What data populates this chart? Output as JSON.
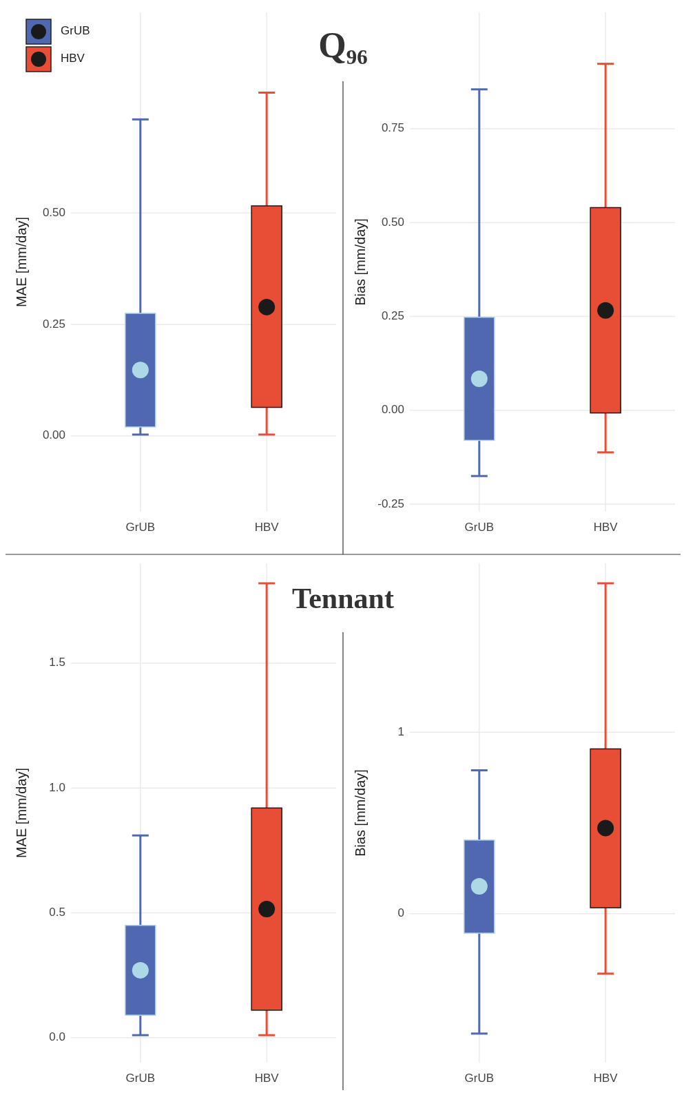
{
  "chart_data": [
    {
      "type": "box",
      "title": "Q₉₆",
      "ylabel": "MAE [mm/day]",
      "categories": [
        "GrUB",
        "HBV"
      ],
      "legend": "top left",
      "grid": true,
      "ylim": [
        -0.17,
        0.95
      ],
      "yticks": [
        {
          "value": 0,
          "label": "0.00"
        },
        0.25,
        {
          "value": 0.5,
          "label": "0.50"
        }
      ],
      "series": [
        {
          "name": "GrUB",
          "color": "#5068b0",
          "boxes": [
            {
              "low": 0.003,
              "q1": 0.02,
              "median": 0.148,
              "q3": 0.275,
              "high": 0.71
            },
            null
          ]
        },
        {
          "name": "HBV",
          "color": "#e84e35",
          "boxes": [
            null,
            {
              "low": 0.003,
              "q1": 0.064,
              "median": 0.289,
              "q3": 0.516,
              "high": 0.77
            }
          ]
        }
      ]
    },
    {
      "type": "box",
      "ylabel": "Bias [mm/day]",
      "categories": [
        "GrUB",
        "HBV"
      ],
      "grid": true,
      "ylim": [
        -0.27,
        1.06
      ],
      "yticks": [
        -0.25,
        {
          "value": 0,
          "label": "0.00"
        },
        0.25,
        {
          "value": 0.5,
          "label": "0.50"
        },
        0.75
      ],
      "series": [
        {
          "color": "#5068b0",
          "boxes": [
            {
              "low": -0.175,
              "q1": -0.08,
              "median": 0.084,
              "q3": 0.248,
              "high": 0.855
            },
            null
          ]
        },
        {
          "color": "#e84e35",
          "boxes": [
            null,
            {
              "low": -0.112,
              "q1": -0.007,
              "median": 0.266,
              "q3": 0.54,
              "high": 0.923
            }
          ]
        }
      ]
    },
    {
      "type": "box",
      "title": "Tennant",
      "ylabel": "MAE [mm/day]",
      "categories": [
        "GrUB",
        "HBV"
      ],
      "grid": true,
      "ylim": [
        -0.1,
        1.9
      ],
      "yticks": [
        {
          "value": 0,
          "label": "0.0"
        },
        0.5,
        {
          "value": 1,
          "label": "1.0"
        },
        1.5
      ],
      "series": [
        {
          "color": "#5068b0",
          "boxes": [
            {
              "low": 0.01,
              "q1": 0.09,
              "median": 0.27,
              "q3": 0.45,
              "high": 0.81
            },
            null
          ]
        },
        {
          "color": "#e84e35",
          "boxes": [
            null,
            {
              "low": 0.01,
              "q1": 0.11,
              "median": 0.515,
              "q3": 0.92,
              "high": 1.82
            }
          ]
        }
      ]
    },
    {
      "type": "box",
      "ylabel": "Bias [mm/day]",
      "categories": [
        "GrUB",
        "HBV"
      ],
      "grid": true,
      "ylim": [
        -0.82,
        1.93
      ],
      "yticks": [
        0,
        1
      ],
      "series": [
        {
          "color": "#5068b0",
          "boxes": [
            {
              "low": -0.66,
              "q1": -0.107,
              "median": 0.151,
              "q3": 0.406,
              "high": 0.79
            },
            null
          ]
        },
        {
          "color": "#e84e35",
          "boxes": [
            null,
            {
              "low": -0.33,
              "q1": 0.033,
              "median": 0.472,
              "q3": 0.908,
              "high": 1.82
            }
          ]
        }
      ]
    }
  ]
}
